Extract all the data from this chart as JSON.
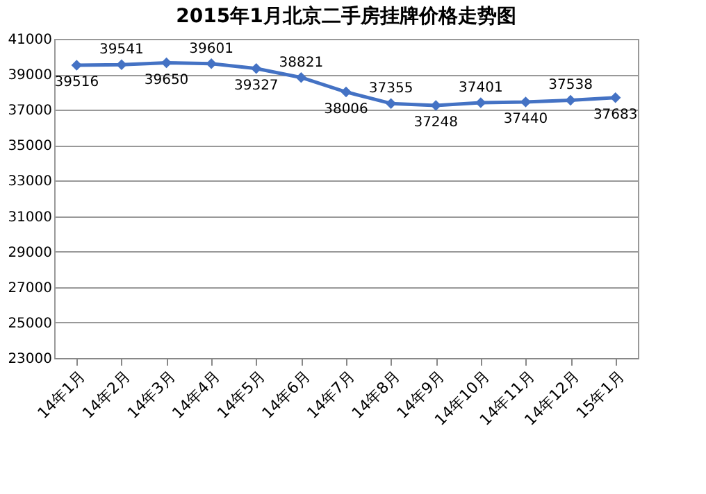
{
  "chart_data": {
    "type": "line",
    "title": "2015年1月北京二手房挂牌价格走势图",
    "categories": [
      "14年1月",
      "14年2月",
      "14年3月",
      "14年4月",
      "14年5月",
      "14年6月",
      "14年7月",
      "14年8月",
      "14年9月",
      "14年10月",
      "14年11月",
      "14年12月",
      "15年1月"
    ],
    "values": [
      39516,
      39541,
      39650,
      39601,
      39327,
      38821,
      38006,
      37355,
      37248,
      37401,
      37440,
      37538,
      37683
    ],
    "color": "#4472c4",
    "marker": "diamond",
    "line_style": "solid",
    "data_labels": true,
    "grid": "y",
    "ylim": [
      23000,
      41000
    ],
    "yticks": [
      23000,
      25000,
      27000,
      29000,
      31000,
      33000,
      35000,
      37000,
      39000,
      41000
    ]
  }
}
